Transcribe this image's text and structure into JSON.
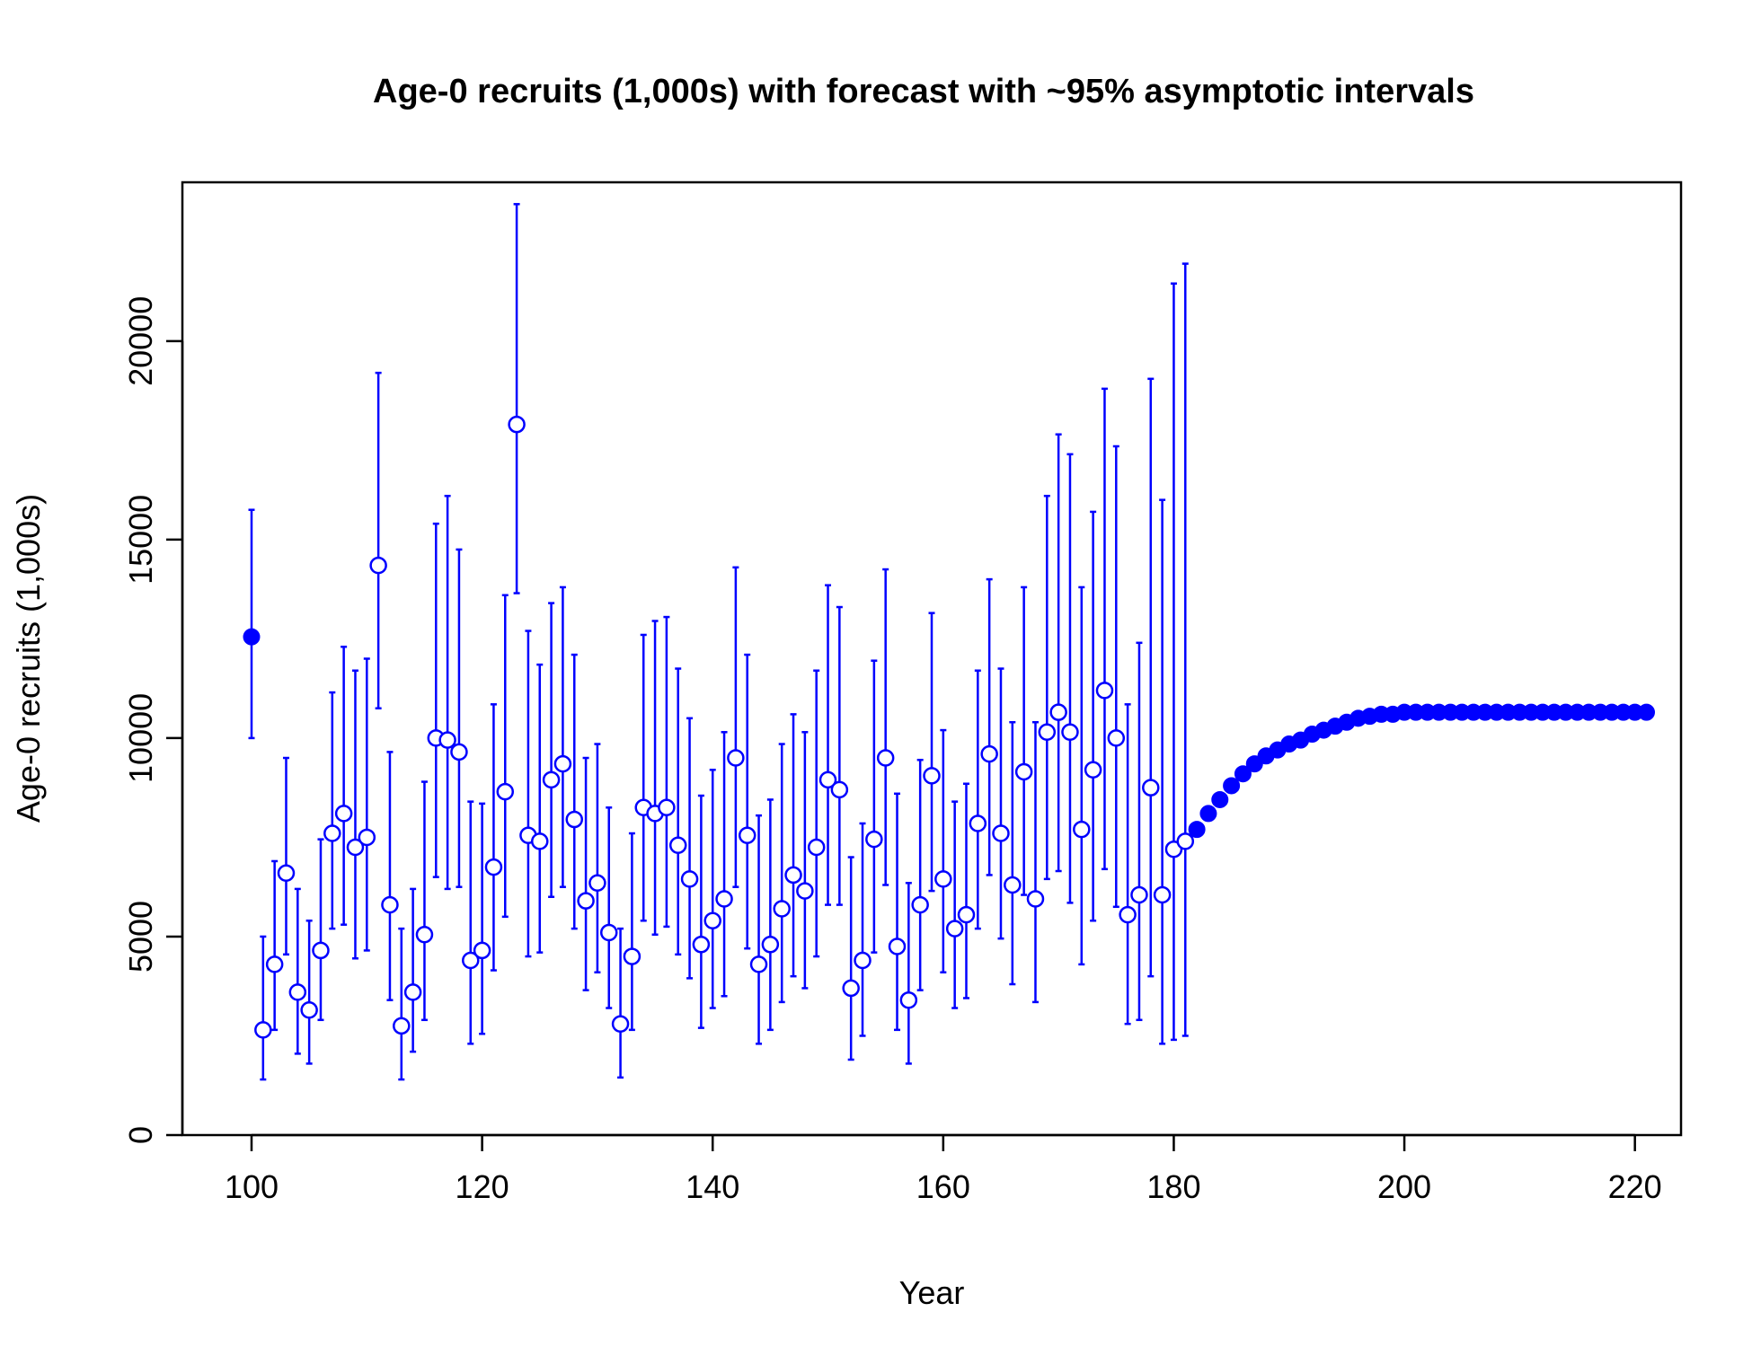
{
  "chart_data": {
    "type": "scatter",
    "title": "Age-0 recruits (1,000s) with forecast with ~95% asymptotic intervals",
    "xlabel": "Year",
    "ylabel": "Age-0 recruits (1,000s)",
    "xlim": [
      94,
      224
    ],
    "ylim": [
      0,
      24000
    ],
    "xticks": [
      100,
      120,
      140,
      160,
      180,
      200,
      220
    ],
    "yticks": [
      0,
      5000,
      10000,
      15000,
      20000
    ],
    "grid": false,
    "color": "#0000ff",
    "virgin": {
      "x": 100,
      "y": 12550,
      "lo": 10000,
      "hi": 15750
    },
    "estimated": {
      "x": [
        101,
        102,
        103,
        104,
        105,
        106,
        107,
        108,
        109,
        110,
        111,
        112,
        113,
        114,
        115,
        116,
        117,
        118,
        119,
        120,
        121,
        122,
        123,
        124,
        125,
        126,
        127,
        128,
        129,
        130,
        131,
        132,
        133,
        134,
        135,
        136,
        137,
        138,
        139,
        140,
        141,
        142,
        143,
        144,
        145,
        146,
        147,
        148,
        149,
        150,
        151,
        152,
        153,
        154,
        155,
        156,
        157,
        158,
        159,
        160,
        161,
        162,
        163,
        164,
        165,
        166,
        167,
        168,
        169,
        170,
        171,
        172,
        173,
        174,
        175,
        176,
        177,
        178,
        179,
        180,
        181
      ],
      "y": [
        2650,
        4300,
        6600,
        3600,
        3150,
        4650,
        7600,
        8100,
        7250,
        7500,
        14350,
        5800,
        2750,
        3600,
        5050,
        10000,
        9950,
        9650,
        4400,
        4650,
        6750,
        8650,
        17900,
        7550,
        7400,
        8950,
        9350,
        7950,
        5900,
        6350,
        5100,
        2800,
        4500,
        8250,
        8100,
        8250,
        7300,
        6450,
        4800,
        5400,
        5950,
        9500,
        7550,
        4300,
        4800,
        5700,
        6550,
        6150,
        7250,
        8950,
        8700,
        3700,
        4400,
        7450,
        9500,
        4750,
        3400,
        5800,
        9050,
        6450,
        5200,
        5550,
        7850,
        9600,
        7600,
        6300,
        9150,
        5950,
        10150,
        10650,
        10150,
        7700,
        9200,
        11200,
        10000,
        5550,
        6050,
        8750,
        6050,
        7200,
        7400
      ],
      "lo": [
        1400,
        2650,
        4550,
        2050,
        1800,
        2900,
        5200,
        5300,
        4450,
        4650,
        10750,
        3400,
        1400,
        2100,
        2900,
        6500,
        6200,
        6250,
        2300,
        2550,
        4150,
        5500,
        13650,
        4500,
        4600,
        6000,
        6250,
        5200,
        3650,
        4100,
        3200,
        1450,
        2650,
        5400,
        5050,
        5250,
        4550,
        3950,
        2700,
        3200,
        3500,
        6250,
        4700,
        2300,
        2650,
        3350,
        4000,
        3700,
        4500,
        5800,
        5800,
        1900,
        2500,
        4600,
        6300,
        2650,
        1800,
        3650,
        6150,
        4100,
        3200,
        3450,
        5200,
        6550,
        4950,
        3800,
        6050,
        3350,
        6450,
        6650,
        5850,
        4300,
        5400,
        6700,
        5750,
        2800,
        2900,
        4000,
        2300,
        2400,
        2500
      ],
      "hi": [
        5000,
        6900,
        9500,
        6200,
        5400,
        7450,
        11150,
        12300,
        11700,
        12000,
        19200,
        9650,
        5200,
        6200,
        8900,
        15400,
        16100,
        14750,
        8400,
        8350,
        10850,
        13600,
        23450,
        12700,
        11850,
        13400,
        13800,
        12100,
        9500,
        9850,
        8250,
        5200,
        7600,
        12600,
        12950,
        13050,
        11750,
        10500,
        8550,
        9200,
        10150,
        14300,
        12100,
        8050,
        8450,
        9850,
        10600,
        10150,
        11700,
        13850,
        13300,
        7000,
        7850,
        11950,
        14250,
        8600,
        6350,
        9450,
        13150,
        10200,
        8400,
        8850,
        11700,
        14000,
        11750,
        10400,
        13800,
        10400,
        16100,
        17650,
        17150,
        13800,
        15700,
        18800,
        17350,
        10850,
        12400,
        19050,
        16000,
        21450,
        21950
      ]
    },
    "forecast": {
      "x": [
        182,
        183,
        184,
        185,
        186,
        187,
        188,
        189,
        190,
        191,
        192,
        193,
        194,
        195,
        196,
        197,
        198,
        199,
        200,
        201,
        202,
        203,
        204,
        205,
        206,
        207,
        208,
        209,
        210,
        211,
        212,
        213,
        214,
        215,
        216,
        217,
        218,
        219,
        220,
        221
      ],
      "y": [
        7700,
        8100,
        8450,
        8800,
        9100,
        9350,
        9550,
        9700,
        9850,
        9950,
        10100,
        10200,
        10300,
        10400,
        10500,
        10550,
        10600,
        10600,
        10650,
        10650,
        10650,
        10650,
        10650,
        10650,
        10650,
        10650,
        10650,
        10650,
        10650,
        10650,
        10650,
        10650,
        10650,
        10650,
        10650,
        10650,
        10650,
        10650,
        10650,
        10650
      ]
    }
  }
}
